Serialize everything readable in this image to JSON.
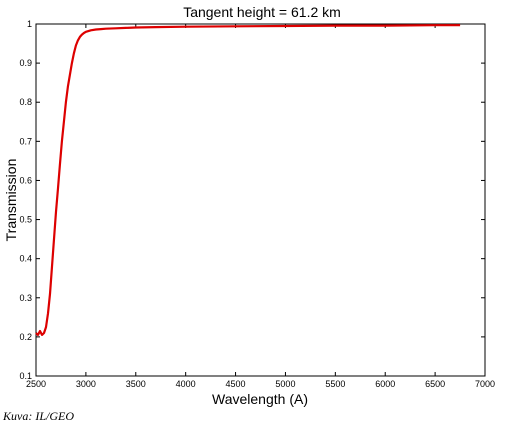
{
  "chart_data": {
    "type": "line",
    "title": "Tangent height = 61.2 km",
    "xlabel": "Wavelength (A)",
    "ylabel": "Transmission",
    "xlim": [
      2500,
      7000
    ],
    "ylim": [
      0.1,
      1
    ],
    "xticks": [
      2500,
      3000,
      3500,
      4000,
      4500,
      5000,
      5500,
      6000,
      6500,
      7000
    ],
    "yticks": [
      0.1,
      0.2,
      0.3,
      0.4,
      0.5,
      0.6,
      0.7,
      0.8,
      0.9,
      1
    ],
    "ytick_labels": [
      "0.1",
      "0.2",
      "0.3",
      "0.4",
      "0.5",
      "0.6",
      "0.7",
      "0.8",
      "0.9",
      "1"
    ],
    "grid": false,
    "series": [
      {
        "color": "#dd0000",
        "x": [
          2500,
          2520,
          2540,
          2560,
          2580,
          2600,
          2620,
          2640,
          2660,
          2680,
          2700,
          2720,
          2740,
          2760,
          2780,
          2800,
          2820,
          2840,
          2860,
          2880,
          2900,
          2920,
          2940,
          2960,
          2980,
          3000,
          3050,
          3100,
          3150,
          3200,
          3300,
          3400,
          3500,
          3700,
          4000,
          4500,
          5000,
          5500,
          6000,
          6500,
          6750
        ],
        "y": [
          0.21,
          0.205,
          0.215,
          0.205,
          0.21,
          0.225,
          0.26,
          0.31,
          0.38,
          0.45,
          0.52,
          0.58,
          0.64,
          0.7,
          0.75,
          0.8,
          0.84,
          0.87,
          0.9,
          0.925,
          0.945,
          0.958,
          0.967,
          0.973,
          0.977,
          0.98,
          0.984,
          0.986,
          0.987,
          0.988,
          0.989,
          0.99,
          0.991,
          0.992,
          0.993,
          0.994,
          0.995,
          0.996,
          0.996,
          0.997,
          0.997
        ]
      }
    ]
  },
  "credit": "Kuva: IL/GEO"
}
